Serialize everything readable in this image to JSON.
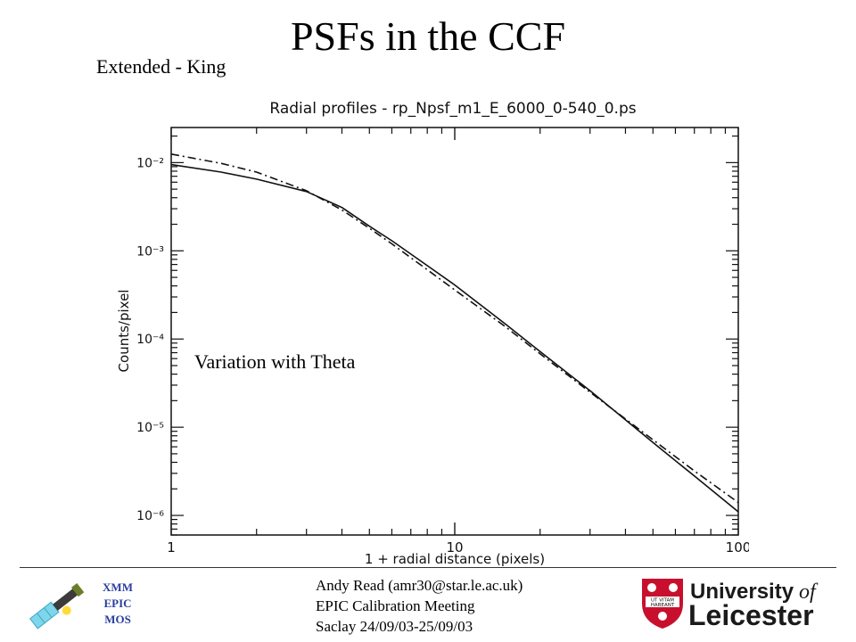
{
  "slide": {
    "title": "PSFs in the CCF",
    "subtitle": "Extended - King",
    "annotation": "Variation with Theta"
  },
  "footer": {
    "mission_lines": [
      "XMM",
      "EPIC",
      "MOS"
    ],
    "author": "Andy Read (amr30@star.le.ac.uk)",
    "meeting": "EPIC Calibration Meeting",
    "place_dates": "Saclay 24/09/03-25/09/03",
    "university_line1": "University",
    "university_of": "of",
    "university_line2": "Leicester",
    "crest_motto": [
      "UT VITAM",
      "HABEANT"
    ],
    "colors": {
      "mission_text": "#2b3fa0",
      "crest_red": "#c8102e"
    }
  },
  "chart_data": {
    "type": "line",
    "title": "Radial profiles - rp_Npsf_m1_E_6000_0-540_0.ps",
    "xlabel": "1 + radial distance (pixels)",
    "ylabel": "Counts/pixel",
    "xscale": "log",
    "yscale": "log",
    "xlim": [
      1,
      100
    ],
    "ylim": [
      6e-07,
      0.025
    ],
    "x_ticks": [
      1,
      10,
      100
    ],
    "x_tick_labels": [
      "1",
      "10",
      "100"
    ],
    "y_ticks": [
      1e-06,
      1e-05,
      0.0001,
      0.001,
      0.01
    ],
    "y_tick_labels": [
      "10⁻⁶",
      "10⁻⁵",
      "10⁻⁴",
      "10⁻³",
      "10⁻²"
    ],
    "grid": false,
    "series": [
      {
        "style": "solid",
        "x": [
          1,
          1.5,
          2,
          3,
          4,
          5,
          6,
          8,
          10,
          15,
          20,
          30,
          50,
          70,
          100
        ],
        "y": [
          0.0095,
          0.0078,
          0.0065,
          0.0047,
          0.0031,
          0.0019,
          0.0013,
          0.00068,
          0.00041,
          0.00015,
          7.2e-05,
          2.6e-05,
          6.7e-06,
          2.8e-06,
          1.1e-06
        ]
      },
      {
        "style": "dash-dot",
        "x": [
          1,
          1.5,
          2,
          3,
          4,
          5,
          6,
          8,
          10,
          15,
          20,
          30,
          50,
          70,
          100
        ],
        "y": [
          0.0125,
          0.0098,
          0.0078,
          0.0048,
          0.0029,
          0.0018,
          0.0012,
          0.00061,
          0.00036,
          0.00014,
          6.8e-05,
          2.5e-05,
          7.2e-06,
          3.2e-06,
          1.4e-06
        ]
      }
    ]
  }
}
